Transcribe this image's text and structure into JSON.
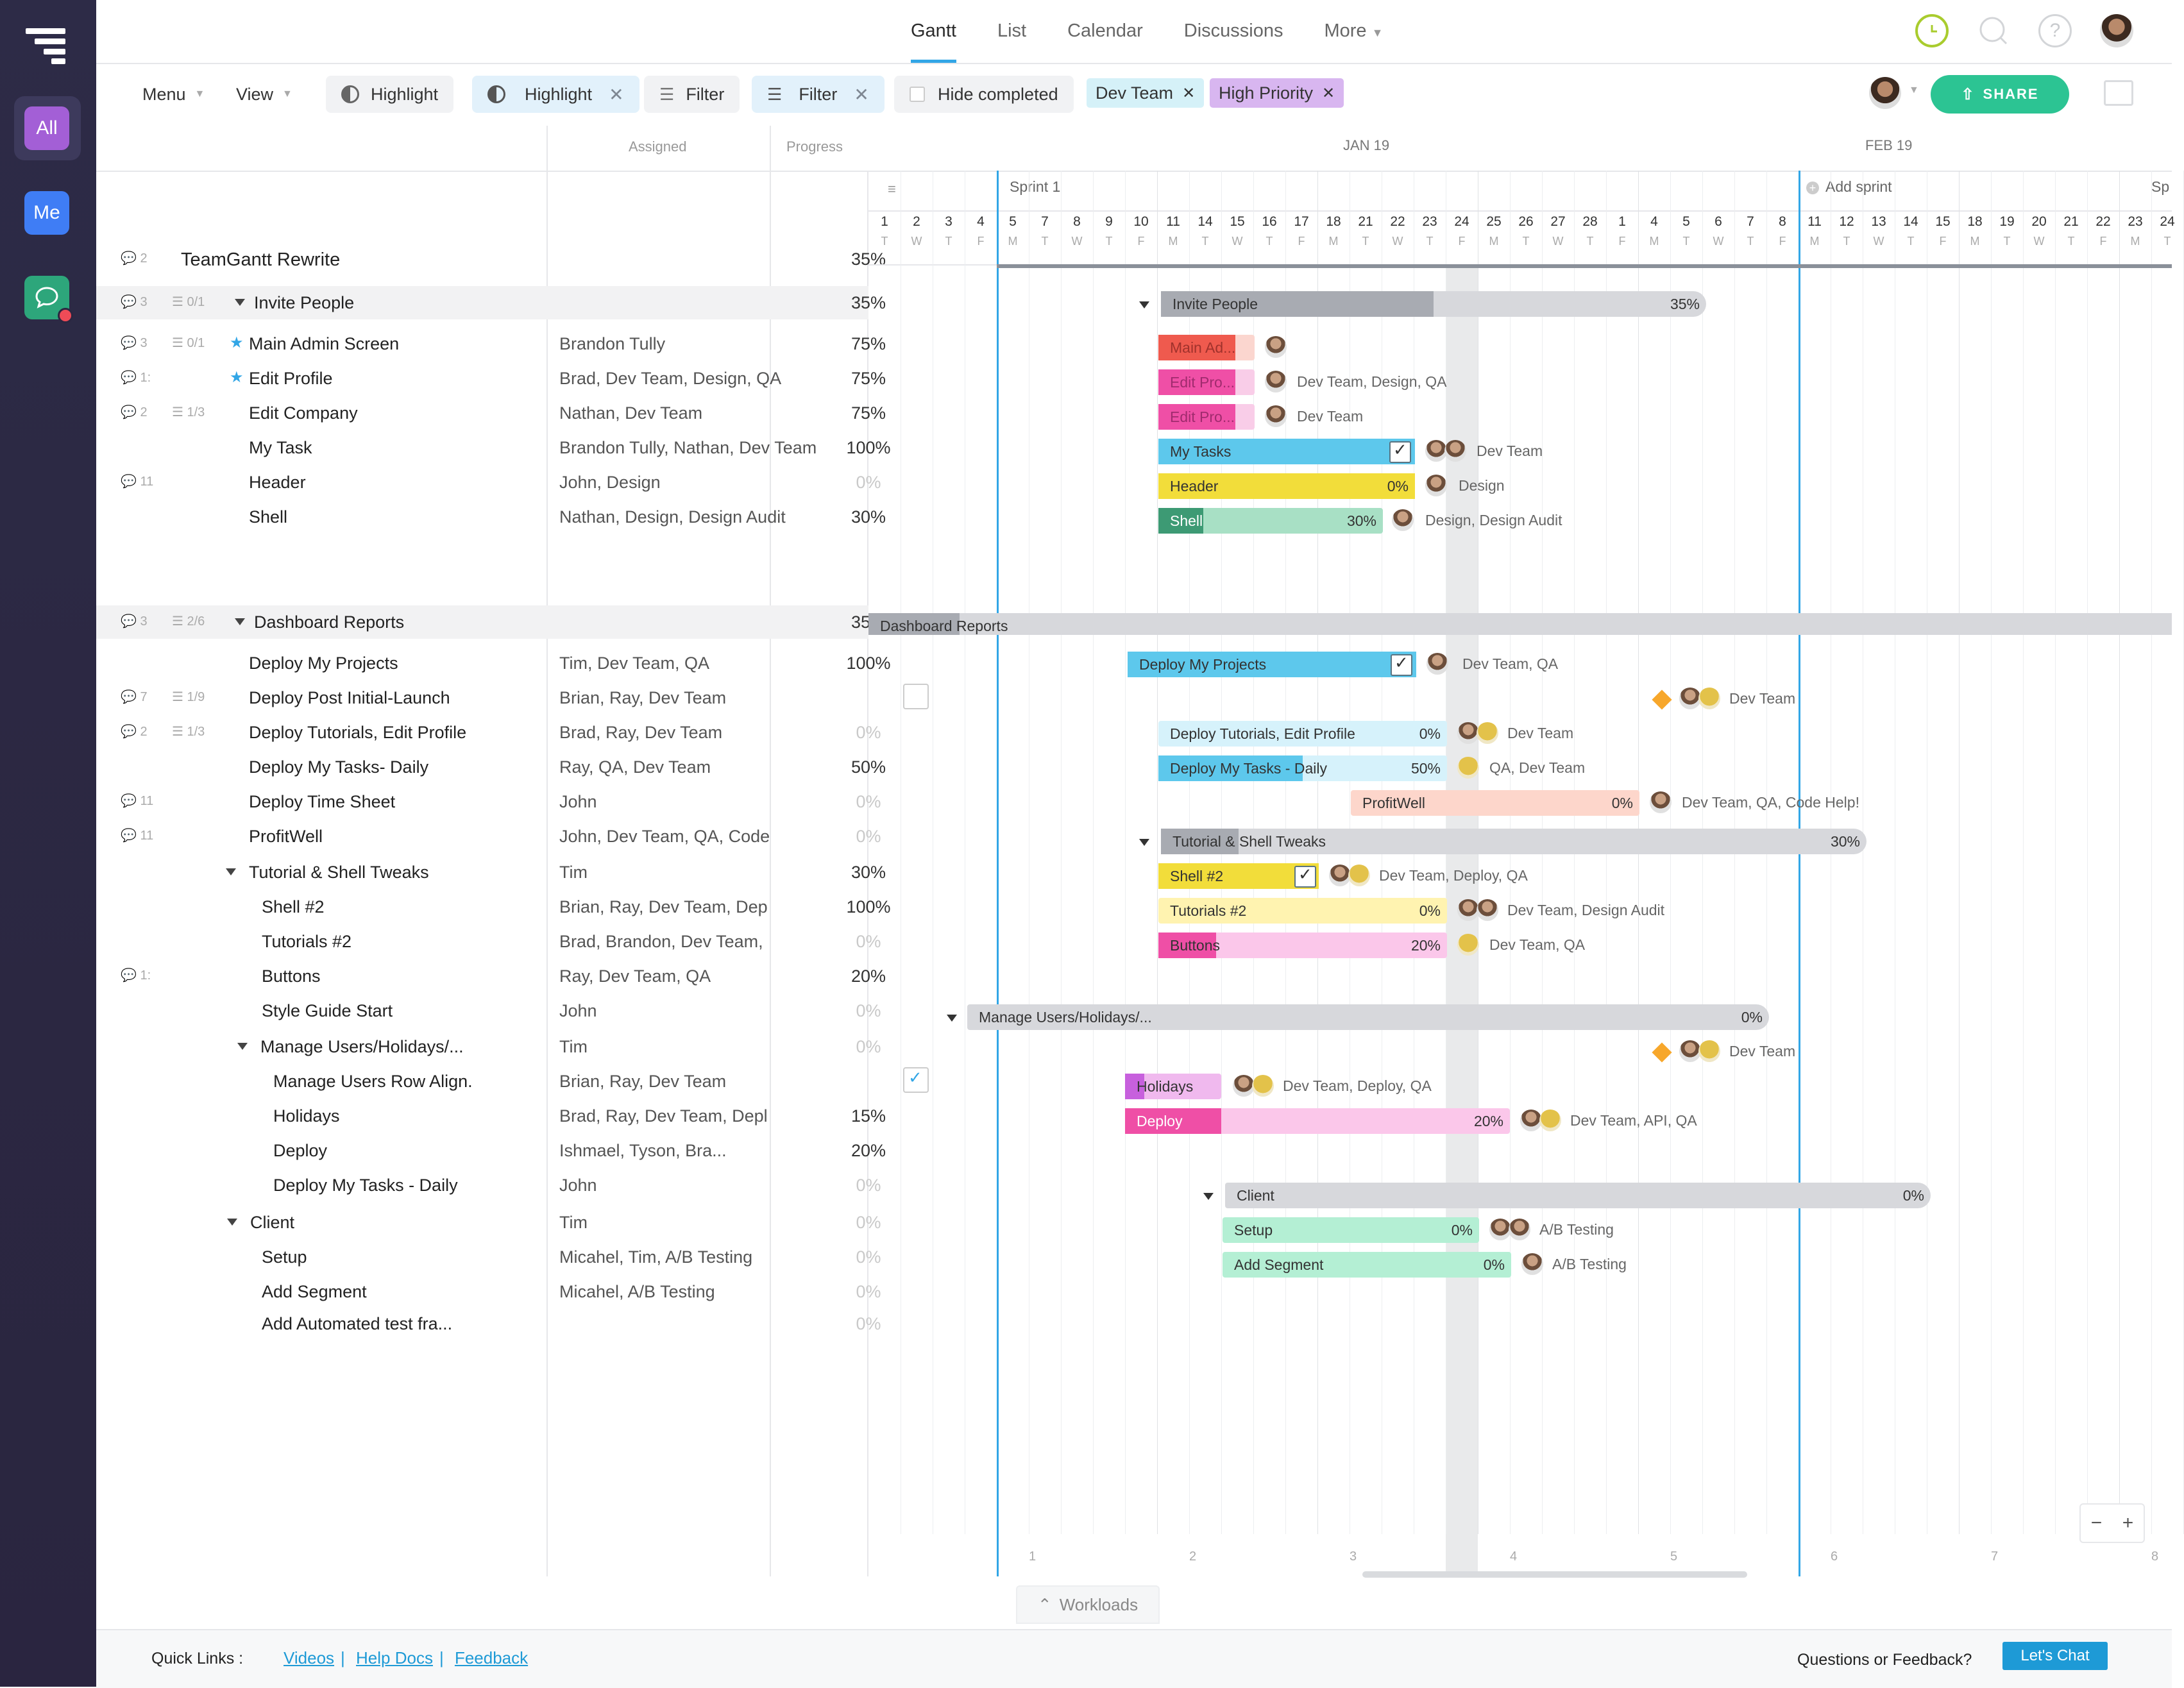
{
  "nav": {
    "all": "All",
    "me": "Me",
    "tabs": [
      "Gantt",
      "List",
      "Calendar",
      "Discussions",
      "More"
    ]
  },
  "toolbar": {
    "menu": "Menu",
    "view": "View",
    "highlight1": "Highlight",
    "highlight2": "Highlight",
    "filter1": "Filter",
    "filter2": "Filter",
    "hide_completed": "Hide completed",
    "chip_dev": "Dev Team",
    "chip_high": "High Priority",
    "share": "SHARE"
  },
  "columns": {
    "assigned": "Assigned",
    "progress": "Progress"
  },
  "timeline": {
    "month1": "JAN 19",
    "month2": "FEB 19",
    "sprint1": "Sprint 1",
    "add_sprint": "Add sprint",
    "sprint_cut": "Sp",
    "days": [
      "1",
      "2",
      "3",
      "4",
      "5",
      "7",
      "8",
      "9",
      "10",
      "11",
      "14",
      "15",
      "16",
      "17",
      "18",
      "21",
      "22",
      "23",
      "24",
      "25",
      "26",
      "27",
      "28",
      "1",
      "4",
      "5",
      "6",
      "7",
      "8",
      "11",
      "12",
      "13",
      "14",
      "15",
      "18",
      "19",
      "20",
      "21",
      "22",
      "23",
      "24"
    ],
    "dows": [
      "T",
      "W",
      "T",
      "F",
      "M",
      "T",
      "W",
      "T",
      "F",
      "M",
      "T",
      "W",
      "T",
      "F",
      "M",
      "T",
      "W",
      "T",
      "F",
      "M",
      "T",
      "W",
      "T",
      "F",
      "M",
      "T",
      "W",
      "T",
      "F",
      "M",
      "T",
      "W",
      "T",
      "F",
      "M",
      "T",
      "W",
      "T",
      "F",
      "M",
      "T"
    ],
    "weeks": [
      "1",
      "2",
      "3",
      "4",
      "5",
      "6",
      "7",
      "8"
    ]
  },
  "rows": [
    {
      "name": "TeamGantt Rewrite",
      "meta": "2",
      "assigned": "",
      "progress": "35%"
    },
    {
      "name": "Invite People",
      "meta": "3",
      "sub": "0/1",
      "assigned": "",
      "progress": "35%"
    },
    {
      "name": "Main Admin Screen",
      "meta": "3",
      "sub": "0/1",
      "assigned": "Brandon Tully",
      "progress": "75%"
    },
    {
      "name": "Edit Profile",
      "meta": "1:",
      "assigned": "Brad, Dev Team, Design, QA",
      "progress": "75%"
    },
    {
      "name": "Edit Company",
      "meta": "2",
      "sub": "1/3",
      "assigned": "Nathan, Dev Team",
      "progress": "75%"
    },
    {
      "name": "My Task",
      "assigned": "Brandon Tully, Nathan,  Dev Team",
      "progress": "100%"
    },
    {
      "name": "Header",
      "meta": "11",
      "assigned": "John, Design",
      "progress": "0%"
    },
    {
      "name": "Shell",
      "assigned": "Nathan, Design, Design Audit",
      "progress": "30%"
    },
    {
      "name": "Dashboard Reports",
      "meta": "3",
      "sub": "2/6",
      "assigned": "",
      "progress": "35%"
    },
    {
      "name": "Deploy My Projects",
      "assigned": "Tim, Dev Team, QA",
      "progress": "100%"
    },
    {
      "name": "Deploy Post Initial-Launch",
      "meta": "7",
      "sub": "1/9",
      "assigned": "Brian, Ray, Dev Team",
      "progress": ""
    },
    {
      "name": "Deploy Tutorials, Edit Profile",
      "meta": "2",
      "sub": "1/3",
      "assigned": "Brad, Ray, Dev Team",
      "progress": "0%"
    },
    {
      "name": "Deploy My Tasks- Daily",
      "assigned": "Ray, QA, Dev Team",
      "progress": "50%"
    },
    {
      "name": "Deploy Time Sheet",
      "meta": "11",
      "assigned": "John",
      "progress": "0%"
    },
    {
      "name": "ProfitWell",
      "meta": "11",
      "assigned": "John, Dev Team, QA, Code",
      "progress": "0%"
    },
    {
      "name": "Tutorial & Shell Tweaks",
      "assigned": "Tim",
      "progress": "30%"
    },
    {
      "name": "Shell #2",
      "assigned": "Brian, Ray, Dev Team, Dep",
      "progress": "100%"
    },
    {
      "name": "Tutorials #2",
      "assigned": "Brad, Brandon, Dev Team,",
      "progress": "0%"
    },
    {
      "name": "Buttons",
      "meta": "1:",
      "assigned": "Ray, Dev Team, QA",
      "progress": "20%"
    },
    {
      "name": "Style Guide Start",
      "assigned": "John",
      "progress": "0%"
    },
    {
      "name": "Manage Users/Holidays/...",
      "assigned": "Tim",
      "progress": "0%"
    },
    {
      "name": "Manage Users Row Align.",
      "assigned": "Brian, Ray, Dev Team",
      "progress": ""
    },
    {
      "name": "Holidays",
      "assigned": "Brad, Ray, Dev Team, Depl",
      "progress": "15%"
    },
    {
      "name": "Deploy",
      "assigned": "Ishmael, Tyson, Bra...",
      "progress": "20%"
    },
    {
      "name": "Deploy My Tasks - Daily",
      "assigned": "John",
      "progress": "0%"
    },
    {
      "name": "Client",
      "assigned": "Tim",
      "progress": "0%"
    },
    {
      "name": "Setup",
      "assigned": "Micahel, Tim, A/B Testing",
      "progress": "0%"
    },
    {
      "name": "Add Segment",
      "assigned": "Micahel, A/B Testing",
      "progress": "0%"
    },
    {
      "name": "Add Automated test fra...",
      "assigned": "",
      "progress": "0%"
    }
  ],
  "bars": {
    "invite": {
      "t": "Invite People",
      "p": "35%"
    },
    "main_admin": {
      "t": "Main Ad..."
    },
    "edit_profile": {
      "t": "Edit Pro...",
      "l": "Dev Team, Design, QA"
    },
    "edit_company": {
      "t": "Edit Pro...",
      "l": "Dev Team"
    },
    "my_tasks": {
      "t": "My Tasks",
      "l": "Dev Team"
    },
    "header": {
      "t": "Header",
      "p": "0%",
      "l": "Design"
    },
    "shell": {
      "t": "Shell",
      "p": "30%",
      "l": "Design, Design Audit"
    },
    "dashboard": {
      "t": "Dashboard Reports"
    },
    "deploy_projects": {
      "t": "Deploy My Projects",
      "l": "Dev Team, QA"
    },
    "deploy_post": {
      "l": "Dev Team"
    },
    "deploy_tutorials": {
      "t": "Deploy Tutorials, Edit Profile",
      "p": "0%",
      "l": "Dev Team"
    },
    "deploy_tasks": {
      "t": "Deploy My Tasks - Daily",
      "p": "50%",
      "l": "QA, Dev Team"
    },
    "profitwell": {
      "t": "ProfitWell",
      "p": "0%",
      "l": "Dev Team, QA, Code Help!"
    },
    "tutorial_shell": {
      "t": "Tutorial & Shell Tweaks",
      "p": "30%"
    },
    "shell2": {
      "t": "Shell #2",
      "l": "Dev Team, Deploy, QA"
    },
    "tutorials2": {
      "t": "Tutorials #2",
      "p": "0%",
      "l": "Dev Team, Design Audit"
    },
    "buttons": {
      "t": "Buttons",
      "p": "20%",
      "l": "Dev Team, QA"
    },
    "manage": {
      "t": "Manage Users/Holidays/...",
      "p": "0%"
    },
    "manage_row": {
      "l": "Dev Team"
    },
    "holidays": {
      "t": "Holidays",
      "l": "Dev Team, Deploy, QA"
    },
    "deploy": {
      "t": "Deploy",
      "p": "20%",
      "l": "Dev Team, API, QA"
    },
    "client": {
      "t": "Client",
      "p": "0%"
    },
    "setup": {
      "t": "Setup",
      "p": "0%",
      "l": "A/B Testing"
    },
    "add_segment": {
      "t": "Add Segment",
      "p": "0%",
      "l": "A/B Testing"
    }
  },
  "workloads": "Workloads",
  "footer": {
    "quick_links": "Quick Links :",
    "videos": "Videos",
    "help": "Help Docs",
    "feedback": "Feedback",
    "question": "Questions or Feedback?",
    "chat": "Let's Chat"
  },
  "colors": {
    "accent": "#32a6e6",
    "share": "#2cc493",
    "rail": "#2b2741"
  }
}
